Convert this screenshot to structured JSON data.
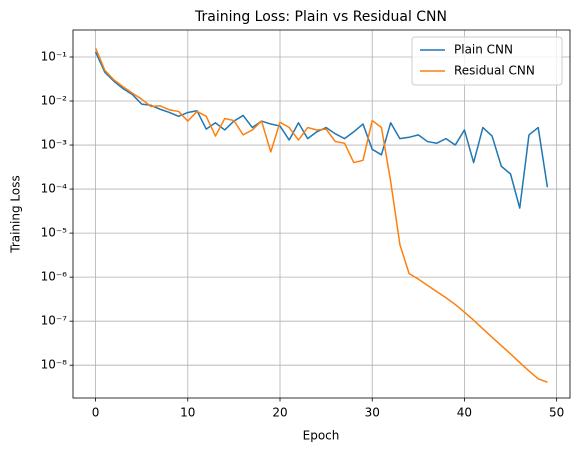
{
  "chart_data": {
    "type": "line",
    "title": "Training Loss: Plain vs Residual CNN",
    "xlabel": "Epoch",
    "ylabel": "Training Loss",
    "x": [
      0,
      1,
      2,
      3,
      4,
      5,
      6,
      7,
      8,
      9,
      10,
      11,
      12,
      13,
      14,
      15,
      16,
      17,
      18,
      19,
      20,
      21,
      22,
      23,
      24,
      25,
      26,
      27,
      28,
      29,
      30,
      31,
      32,
      33,
      34,
      35,
      36,
      37,
      38,
      39,
      40,
      41,
      42,
      43,
      44,
      45,
      46,
      47,
      48,
      49
    ],
    "series": [
      {
        "name": "Plain CNN",
        "color": "#1f77b4",
        "values": [
          0.13,
          0.045,
          0.028,
          0.019,
          0.014,
          0.0085,
          0.008,
          0.0065,
          0.0055,
          0.0045,
          0.0055,
          0.006,
          0.0023,
          0.0032,
          0.0022,
          0.0035,
          0.0047,
          0.0025,
          0.0035,
          0.003,
          0.0027,
          0.0013,
          0.0032,
          0.0014,
          0.002,
          0.0025,
          0.0018,
          0.0014,
          0.002,
          0.003,
          0.0008,
          0.0006,
          0.0032,
          0.0014,
          0.0015,
          0.0017,
          0.0012,
          0.0011,
          0.0014,
          0.001,
          0.0022,
          0.0004,
          0.0025,
          0.0016,
          0.00033,
          0.00022,
          3.7e-05,
          0.0017,
          0.0025,
          0.00011
        ]
      },
      {
        "name": "Residual CNN",
        "color": "#ff7f0e",
        "values": [
          0.16,
          0.05,
          0.03,
          0.021,
          0.015,
          0.011,
          0.0075,
          0.0078,
          0.0063,
          0.0058,
          0.0035,
          0.0058,
          0.0045,
          0.0016,
          0.004,
          0.0036,
          0.0017,
          0.0022,
          0.0035,
          0.0007,
          0.0033,
          0.0025,
          0.0013,
          0.0025,
          0.0022,
          0.0023,
          0.0012,
          0.0011,
          0.0004,
          0.00045,
          0.0036,
          0.0025,
          0.00015,
          5.5e-06,
          1.2e-06,
          9e-07,
          6.5e-07,
          4.7e-07,
          3.4e-07,
          2.4e-07,
          1.6e-07,
          1.05e-07,
          6.7e-08,
          4.3e-08,
          2.8e-08,
          1.8e-08,
          1.15e-08,
          7.4e-09,
          4.9e-09,
          4.1e-09
        ]
      }
    ],
    "xlim": [
      -2.45,
      51.45
    ],
    "xticks": [
      0,
      10,
      20,
      30,
      40,
      50
    ],
    "ylim": [
      1.8e-09,
      0.41
    ],
    "yscale": "log",
    "yticks": [
      {
        "value": 0.1,
        "label": "10⁻¹"
      },
      {
        "value": 0.01,
        "label": "10⁻²"
      },
      {
        "value": 0.001,
        "label": "10⁻³"
      },
      {
        "value": 0.0001,
        "label": "10⁻⁴"
      },
      {
        "value": 1e-05,
        "label": "10⁻⁵"
      },
      {
        "value": 1e-06,
        "label": "10⁻⁶"
      },
      {
        "value": 1e-07,
        "label": "10⁻⁷"
      },
      {
        "value": 1e-08,
        "label": "10⁻⁸"
      }
    ],
    "grid": true,
    "legend": "upper right"
  }
}
